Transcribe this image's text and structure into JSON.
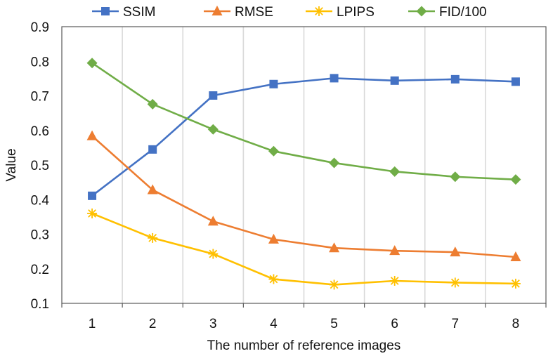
{
  "chart_data": {
    "type": "line",
    "title": "",
    "xlabel": "The number of reference images",
    "ylabel": "Value",
    "categories": [
      "1",
      "2",
      "3",
      "4",
      "5",
      "6",
      "7",
      "8"
    ],
    "ylim": [
      0.1,
      0.9
    ],
    "yticks": [
      "0.1",
      "0.2",
      "0.3",
      "0.4",
      "0.5",
      "0.6",
      "0.7",
      "0.8",
      "0.9"
    ],
    "grid": "vertical",
    "legend_position": "top",
    "series": [
      {
        "name": "SSIM",
        "color": "#4472C4",
        "marker": "square",
        "values": [
          0.411,
          0.545,
          0.701,
          0.734,
          0.751,
          0.744,
          0.748,
          0.741
        ]
      },
      {
        "name": "RMSE",
        "color": "#ED7D31",
        "marker": "triangle",
        "values": [
          0.584,
          0.428,
          0.337,
          0.285,
          0.26,
          0.252,
          0.248,
          0.234
        ]
      },
      {
        "name": "LPIPS",
        "color": "#FFC000",
        "marker": "star",
        "values": [
          0.36,
          0.289,
          0.243,
          0.17,
          0.154,
          0.165,
          0.16,
          0.157
        ]
      },
      {
        "name": "FID/100",
        "color": "#70AD47",
        "marker": "diamond",
        "values": [
          0.795,
          0.676,
          0.603,
          0.54,
          0.506,
          0.481,
          0.466,
          0.458
        ]
      }
    ]
  }
}
